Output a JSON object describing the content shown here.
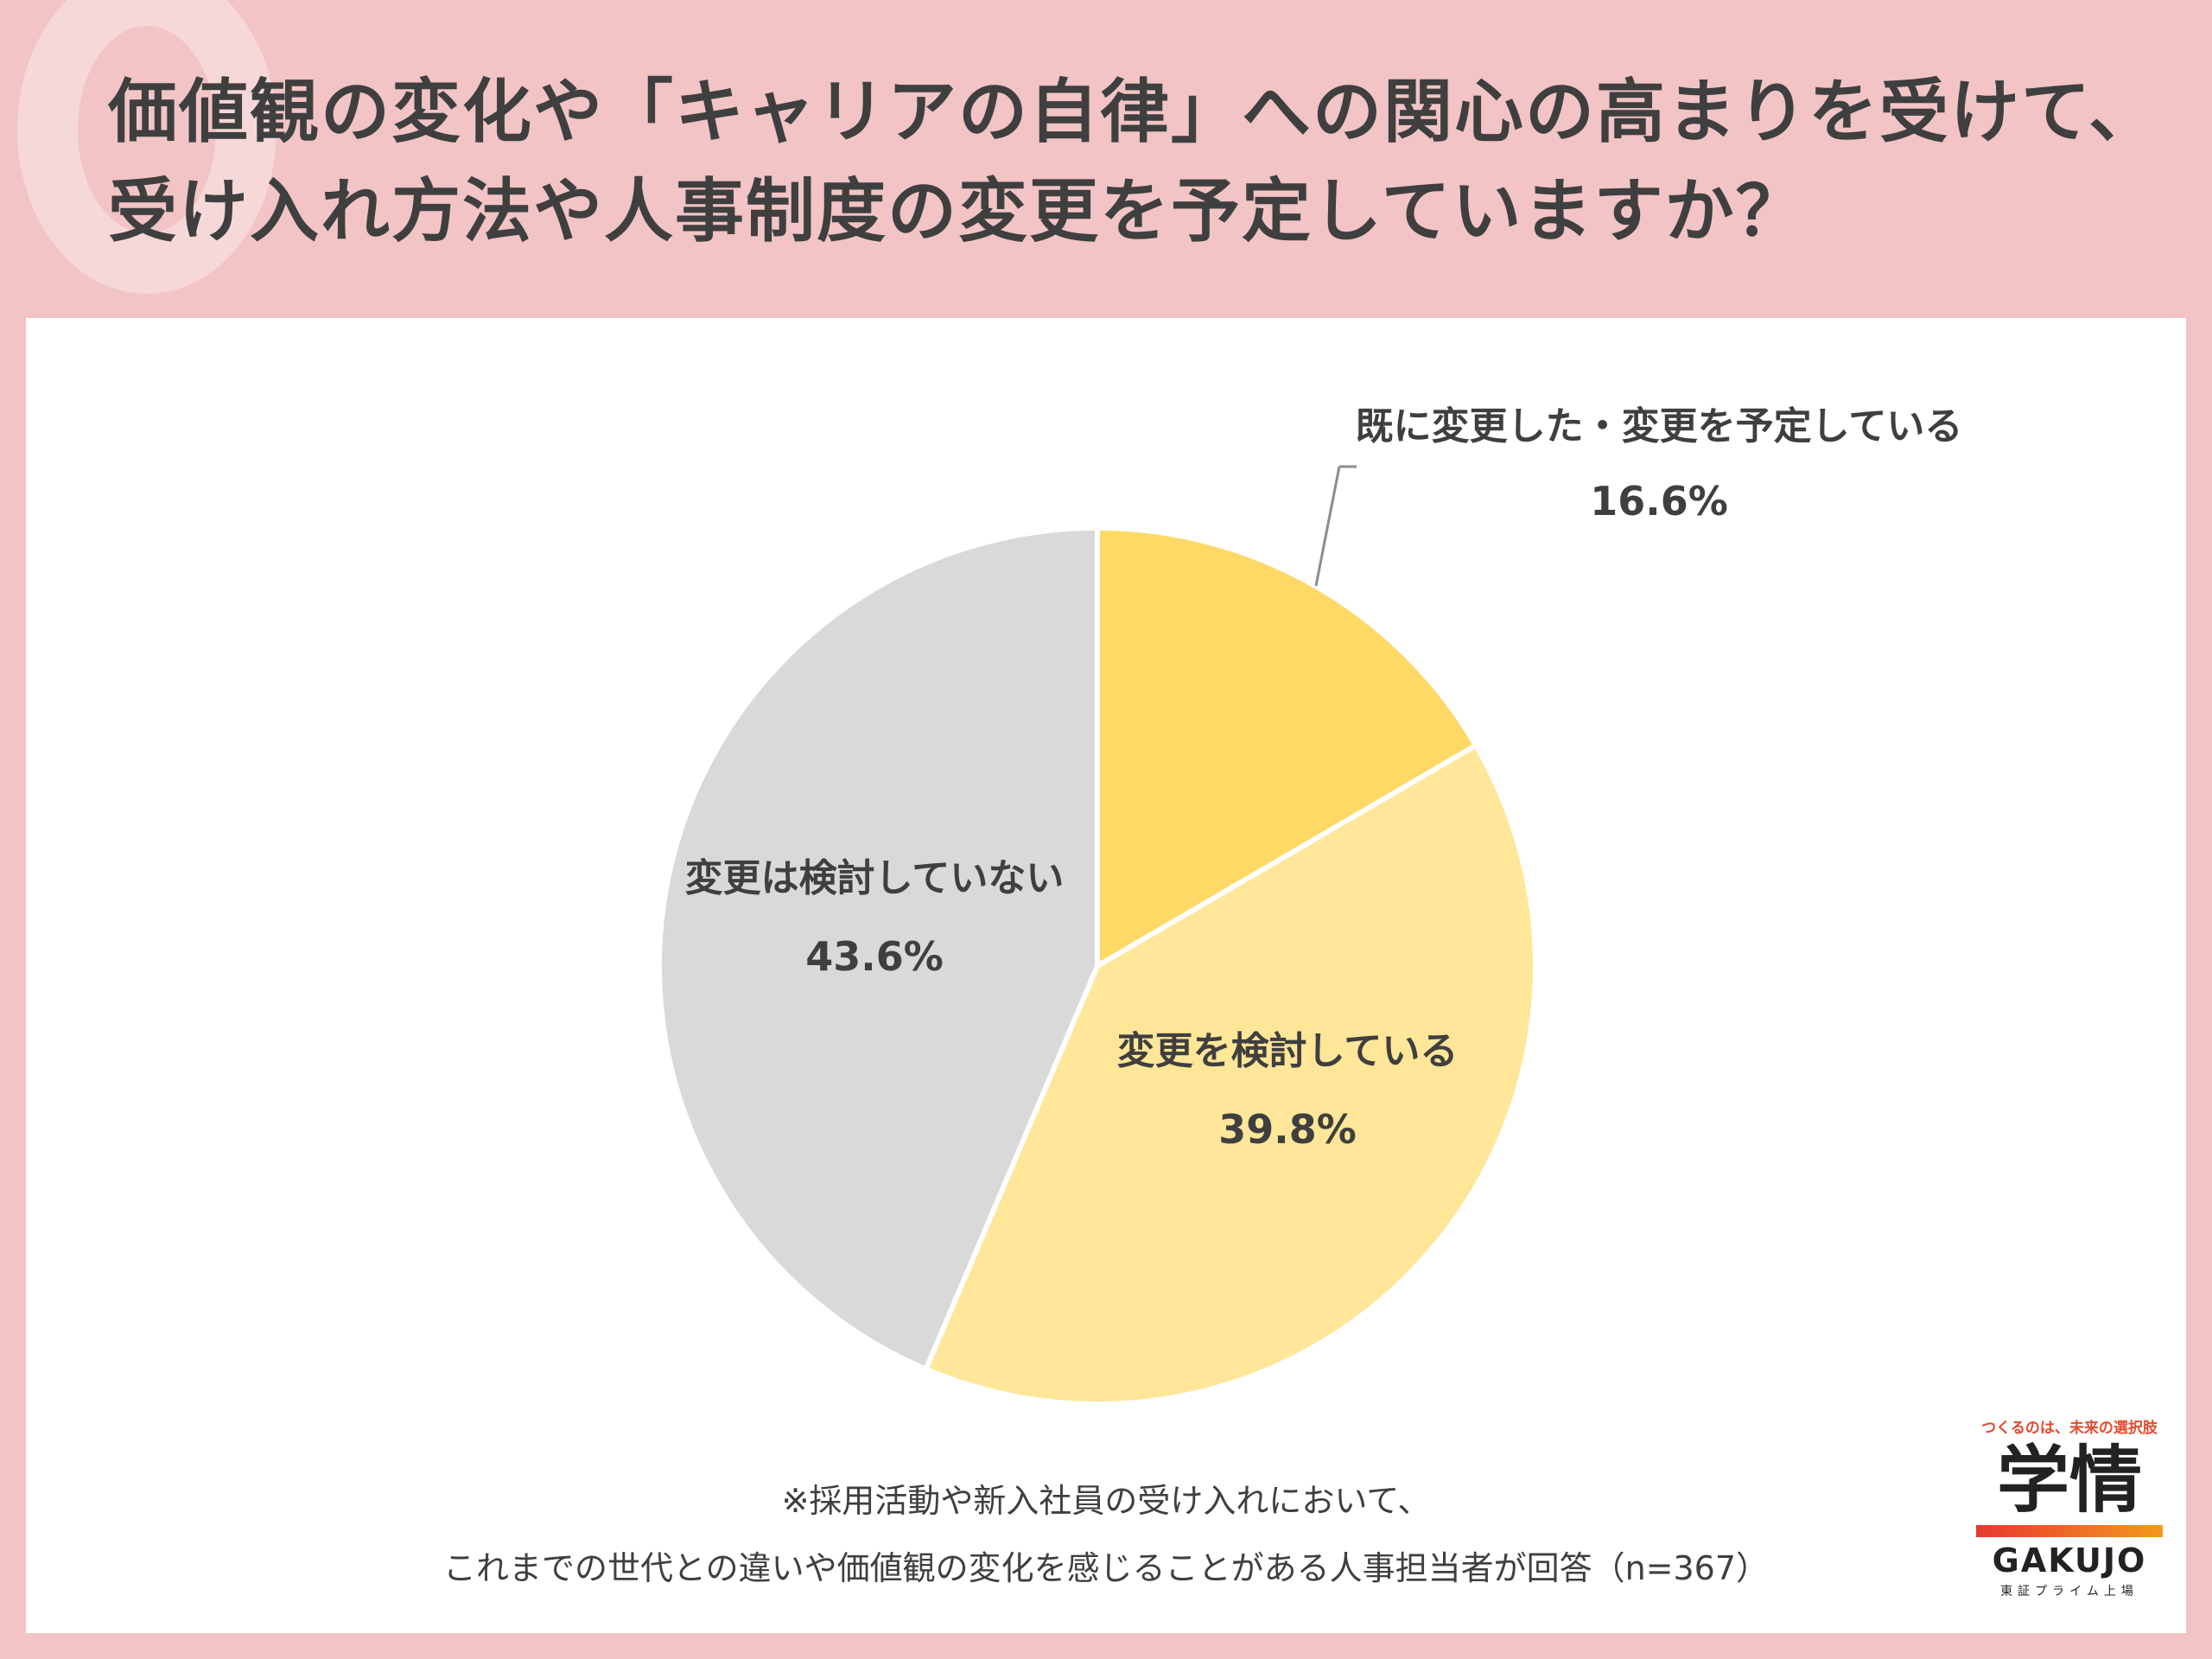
{
  "title_lines": [
    "価値観の変化や「キャリアの自律」への関心の高まりを受けて、",
    "受け入れ方法や人事制度の変更を予定していますか？"
  ],
  "chart_data": {
    "type": "pie",
    "slices": [
      {
        "label": "既に変更した・変更を予定している",
        "value": 16.6,
        "value_label": "16.6%",
        "color": "#ffd966"
      },
      {
        "label": "変更を検討している",
        "value": 39.8,
        "value_label": "39.8%",
        "color": "#ffe699"
      },
      {
        "label": "変更は検討していない",
        "value": 43.6,
        "value_label": "43.6%",
        "color": "#d9d9d9"
      }
    ],
    "start": "12 o'clock, clockwise"
  },
  "note_lines": [
    "※採用活動や新入社員の受け入れにおいて、",
    "これまでの世代との違いや価値観の変化を感じることがある人事担当者が回答（n=367）"
  ],
  "logo": {
    "tagline": "つくるのは、未来の選択肢",
    "kanji": "学情",
    "english": "GAKUJO",
    "sub": "東証プライム上場"
  }
}
